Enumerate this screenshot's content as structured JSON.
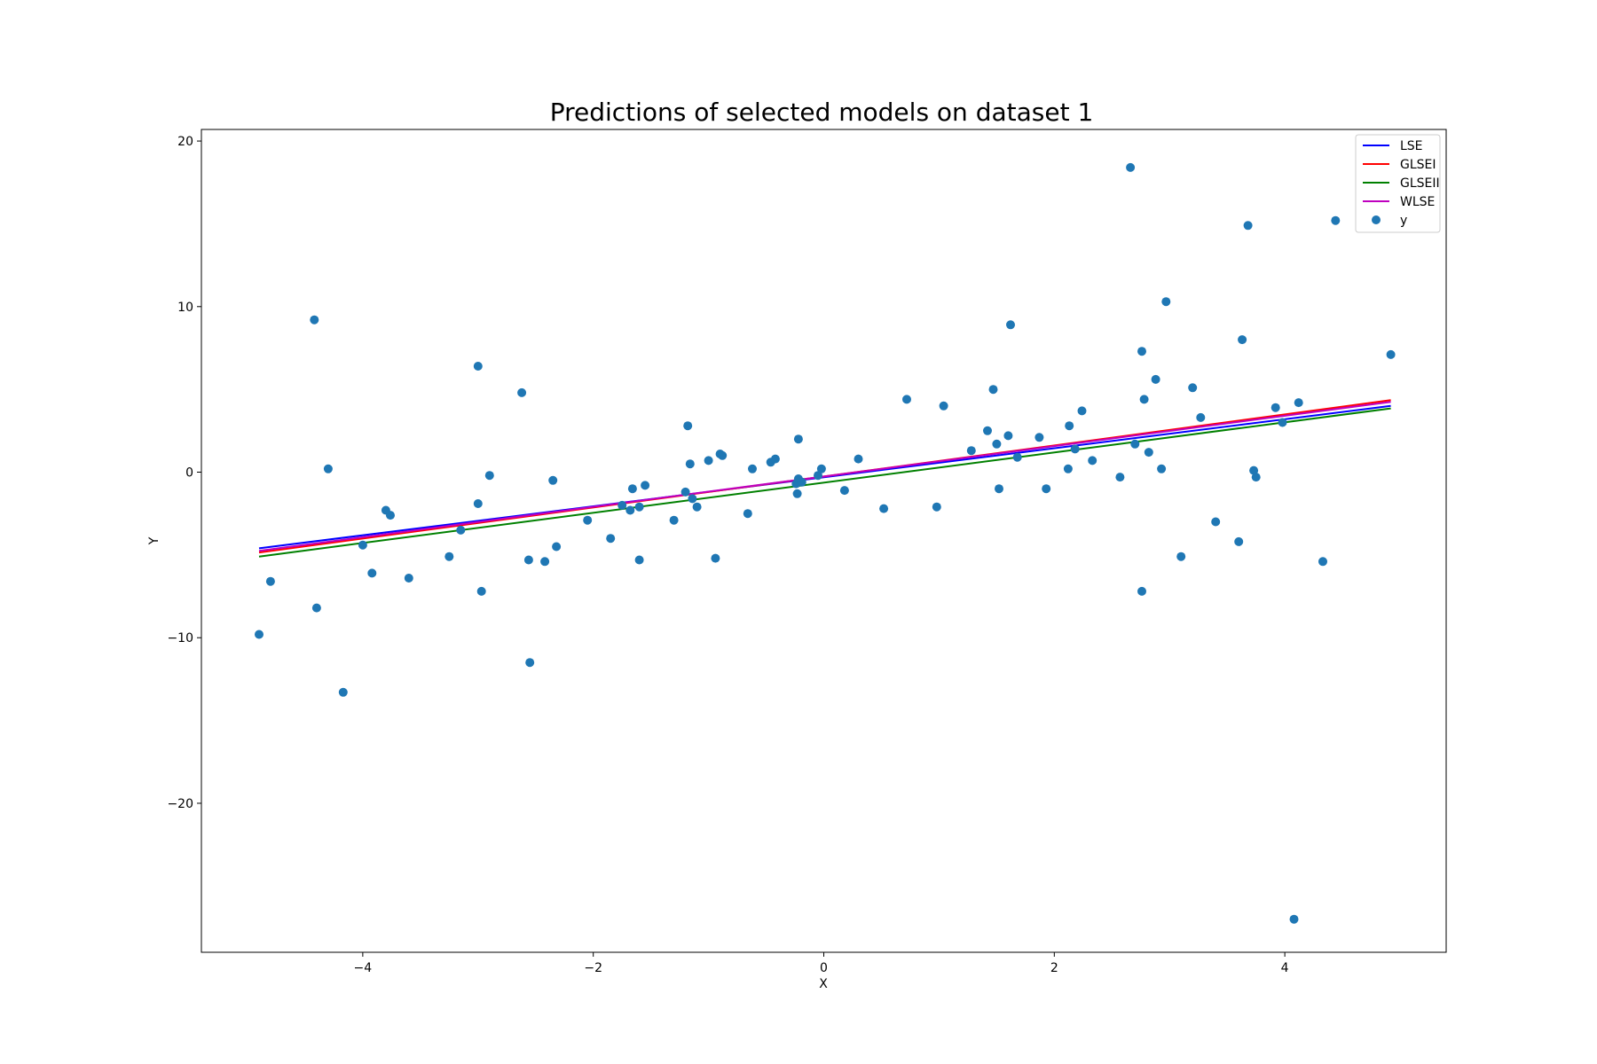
{
  "chart_data": {
    "type": "scatter",
    "title": "Predictions of selected models on dataset 1",
    "xlabel": "X",
    "ylabel": "Y",
    "xlim": [
      -5.4,
      5.4
    ],
    "ylim": [
      -29,
      20.7
    ],
    "x_ticks": [
      -4,
      -2,
      0,
      2,
      4
    ],
    "y_ticks": [
      -20,
      -10,
      0,
      10,
      20
    ],
    "grid": false,
    "legend_position": "top-right",
    "lines": [
      {
        "name": "LSE",
        "color": "#0000ff",
        "x": [
          -4.9,
          4.92
        ],
        "y": [
          -4.6,
          4.0
        ]
      },
      {
        "name": "GLSEI",
        "color": "#ff0000",
        "x": [
          -4.9,
          4.92
        ],
        "y": [
          -4.85,
          4.35
        ]
      },
      {
        "name": "GLSEII",
        "color": "#008000",
        "x": [
          -4.9,
          4.92
        ],
        "y": [
          -5.1,
          3.85
        ]
      },
      {
        "name": "WLSE",
        "color": "#bf00bf",
        "x": [
          -4.9,
          4.92
        ],
        "y": [
          -4.75,
          4.25
        ]
      }
    ],
    "scatter": {
      "name": "y",
      "color": "#1f77b4",
      "points": [
        [
          -4.9,
          -9.8
        ],
        [
          -4.8,
          -6.6
        ],
        [
          -4.42,
          9.2
        ],
        [
          -4.4,
          -8.2
        ],
        [
          -4.3,
          0.2
        ],
        [
          -4.17,
          -13.3
        ],
        [
          -4.0,
          -4.4
        ],
        [
          -3.92,
          -6.1
        ],
        [
          -3.8,
          -2.3
        ],
        [
          -3.76,
          -2.6
        ],
        [
          -3.6,
          -6.4
        ],
        [
          -3.25,
          -5.1
        ],
        [
          -3.15,
          -3.5
        ],
        [
          -3.0,
          6.4
        ],
        [
          -3.0,
          -1.9
        ],
        [
          -2.97,
          -7.2
        ],
        [
          -2.9,
          -0.2
        ],
        [
          -2.62,
          4.8
        ],
        [
          -2.56,
          -5.3
        ],
        [
          -2.55,
          -11.5
        ],
        [
          -2.42,
          -5.4
        ],
        [
          -2.35,
          -0.5
        ],
        [
          -2.32,
          -4.5
        ],
        [
          -2.05,
          -2.9
        ],
        [
          -1.85,
          -4.0
        ],
        [
          -1.75,
          -2.0
        ],
        [
          -1.68,
          -2.3
        ],
        [
          -1.66,
          -1.0
        ],
        [
          -1.6,
          -2.1
        ],
        [
          -1.6,
          -5.3
        ],
        [
          -1.55,
          -0.8
        ],
        [
          -1.3,
          -2.9
        ],
        [
          -1.2,
          -1.2
        ],
        [
          -1.18,
          2.8
        ],
        [
          -1.16,
          0.5
        ],
        [
          -1.14,
          -1.6
        ],
        [
          -1.1,
          -2.1
        ],
        [
          -1.0,
          0.7
        ],
        [
          -0.94,
          -5.2
        ],
        [
          -0.9,
          1.1
        ],
        [
          -0.88,
          1.0
        ],
        [
          -0.66,
          -2.5
        ],
        [
          -0.62,
          0.2
        ],
        [
          -0.46,
          0.6
        ],
        [
          -0.42,
          0.8
        ],
        [
          -0.24,
          -0.7
        ],
        [
          -0.23,
          -1.3
        ],
        [
          -0.22,
          2.0
        ],
        [
          -0.22,
          -0.4
        ],
        [
          -0.19,
          -0.6
        ],
        [
          -0.05,
          -0.2
        ],
        [
          -0.02,
          0.2
        ],
        [
          0.18,
          -1.1
        ],
        [
          0.3,
          0.8
        ],
        [
          0.52,
          -2.2
        ],
        [
          0.72,
          4.4
        ],
        [
          0.98,
          -2.1
        ],
        [
          1.04,
          4.0
        ],
        [
          1.28,
          1.3
        ],
        [
          1.42,
          2.5
        ],
        [
          1.47,
          5.0
        ],
        [
          1.5,
          1.7
        ],
        [
          1.52,
          -1.0
        ],
        [
          1.6,
          2.2
        ],
        [
          1.62,
          8.9
        ],
        [
          1.68,
          0.9
        ],
        [
          1.87,
          2.1
        ],
        [
          1.93,
          -1.0
        ],
        [
          2.12,
          0.2
        ],
        [
          2.13,
          2.8
        ],
        [
          2.18,
          1.4
        ],
        [
          2.24,
          3.7
        ],
        [
          2.33,
          0.7
        ],
        [
          2.57,
          -0.3
        ],
        [
          2.66,
          18.4
        ],
        [
          2.7,
          1.7
        ],
        [
          2.76,
          7.3
        ],
        [
          2.76,
          -7.2
        ],
        [
          2.78,
          4.4
        ],
        [
          2.82,
          1.2
        ],
        [
          2.88,
          5.6
        ],
        [
          2.93,
          0.2
        ],
        [
          2.97,
          10.3
        ],
        [
          3.1,
          -5.1
        ],
        [
          3.2,
          5.1
        ],
        [
          3.27,
          3.3
        ],
        [
          3.4,
          -3.0
        ],
        [
          3.6,
          -4.2
        ],
        [
          3.63,
          8.0
        ],
        [
          3.68,
          14.9
        ],
        [
          3.73,
          0.1
        ],
        [
          3.75,
          -0.3
        ],
        [
          3.92,
          3.9
        ],
        [
          3.98,
          3.0
        ],
        [
          4.08,
          -27.0
        ],
        [
          4.12,
          4.2
        ],
        [
          4.33,
          -5.4
        ],
        [
          4.44,
          15.2
        ],
        [
          4.92,
          7.1
        ]
      ]
    }
  }
}
